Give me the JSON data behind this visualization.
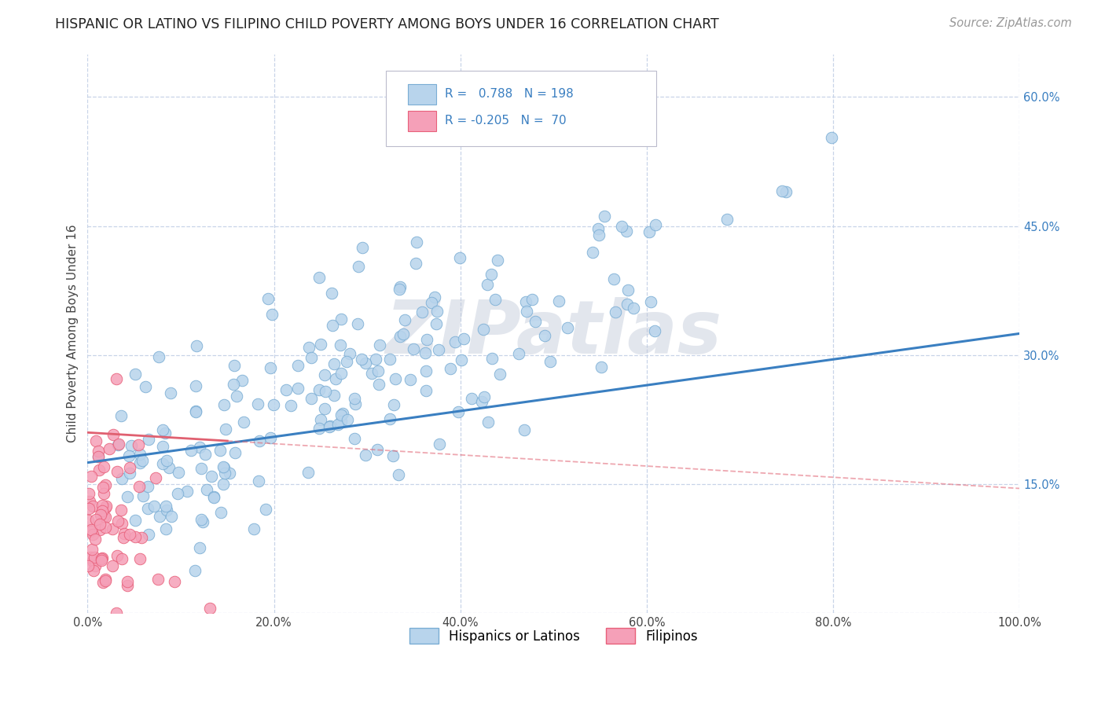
{
  "title": "HISPANIC OR LATINO VS FILIPINO CHILD POVERTY AMONG BOYS UNDER 16 CORRELATION CHART",
  "source": "Source: ZipAtlas.com",
  "ylabel": "Child Poverty Among Boys Under 16",
  "watermark": "ZIPatlas",
  "blue_R": 0.788,
  "blue_N": 198,
  "pink_R": -0.205,
  "pink_N": 70,
  "blue_color": "#b8d4ec",
  "blue_edge": "#7aadd4",
  "pink_color": "#f5a0b8",
  "pink_edge": "#e8607a",
  "blue_line_color": "#3a7fc1",
  "pink_line_color": "#e06070",
  "background_color": "#ffffff",
  "grid_color": "#c8d4e8",
  "title_color": "#222222",
  "source_color": "#999999",
  "legend_color": "#3a7fc1",
  "xlim": [
    0.0,
    1.0
  ],
  "ylim": [
    0.0,
    0.65
  ],
  "yticks": [
    0.0,
    0.15,
    0.3,
    0.45,
    0.6
  ],
  "ytick_labels": [
    "",
    "15.0%",
    "30.0%",
    "45.0%",
    "60.0%"
  ],
  "xticks": [
    0.0,
    0.2,
    0.4,
    0.6,
    0.8,
    1.0
  ],
  "xtick_labels": [
    "0.0%",
    "20.0%",
    "40.0%",
    "60.0%",
    "80.0%",
    "100.0%"
  ],
  "legend_label_blue": "Hispanics or Latinos",
  "legend_label_pink": "Filipinos",
  "blue_trend_y0": 0.175,
  "blue_trend_y1": 0.325,
  "pink_trend_y0": 0.21,
  "pink_trend_y1": 0.145,
  "seed": 12
}
